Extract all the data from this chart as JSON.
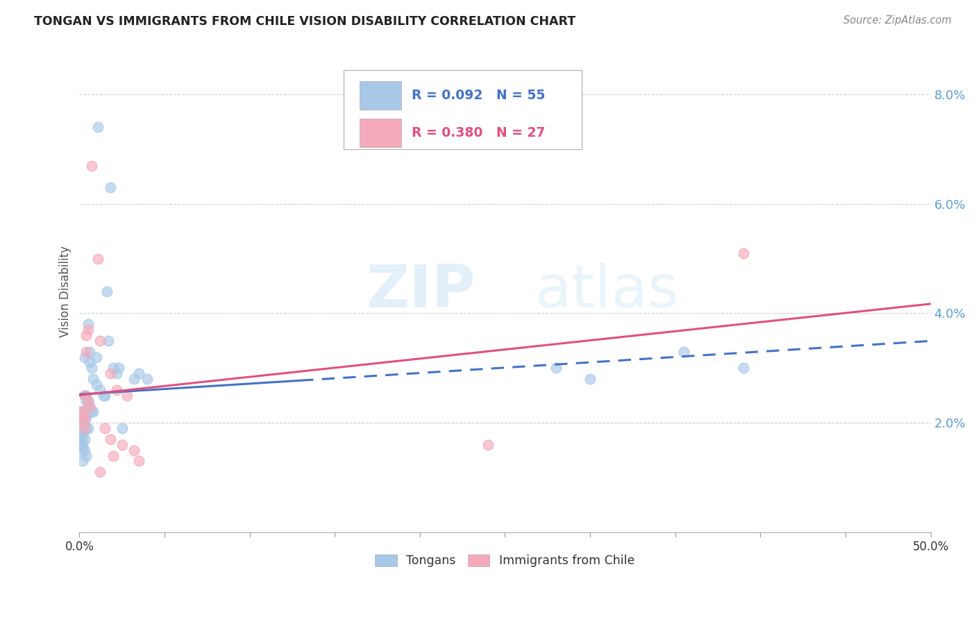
{
  "title": "TONGAN VS IMMIGRANTS FROM CHILE VISION DISABILITY CORRELATION CHART",
  "source": "Source: ZipAtlas.com",
  "ylabel": "Vision Disability",
  "xlim": [
    0.0,
    0.5
  ],
  "ylim": [
    0.0,
    0.088
  ],
  "yticks": [
    0.02,
    0.04,
    0.06,
    0.08
  ],
  "ytick_labels": [
    "2.0%",
    "4.0%",
    "6.0%",
    "8.0%"
  ],
  "xticks": [
    0.0,
    0.05,
    0.1,
    0.15,
    0.2,
    0.25,
    0.3,
    0.35,
    0.4,
    0.45,
    0.5
  ],
  "legend_entries": [
    {
      "label": "Tongans",
      "R": "0.092",
      "N": "55",
      "color": "#a8c8e8"
    },
    {
      "label": "Immigrants from Chile",
      "R": "0.380",
      "N": "27",
      "color": "#f4aabb"
    }
  ],
  "color_blue": "#a8c8e8",
  "color_pink": "#f4aabb",
  "color_blue_line": "#4472c4",
  "color_pink_line": "#e05080",
  "watermark_zip": "ZIP",
  "watermark_atlas": "atlas",
  "tongans_x": [
    0.011,
    0.018,
    0.016,
    0.004,
    0.005,
    0.006,
    0.003,
    0.006,
    0.007,
    0.008,
    0.01,
    0.012,
    0.014,
    0.003,
    0.004,
    0.005,
    0.006,
    0.007,
    0.008,
    0.002,
    0.003,
    0.004,
    0.002,
    0.001,
    0.002,
    0.003,
    0.004,
    0.005,
    0.002,
    0.001,
    0.002,
    0.001,
    0.003,
    0.01,
    0.02,
    0.022,
    0.032,
    0.002,
    0.015,
    0.025,
    0.017,
    0.023,
    0.035,
    0.04,
    0.003,
    0.004,
    0.001,
    0.355,
    0.39,
    0.001,
    0.002,
    0.28,
    0.3,
    0.002,
    0.001
  ],
  "tongans_y": [
    0.074,
    0.063,
    0.044,
    0.025,
    0.038,
    0.033,
    0.032,
    0.031,
    0.03,
    0.028,
    0.027,
    0.026,
    0.025,
    0.025,
    0.024,
    0.024,
    0.023,
    0.022,
    0.022,
    0.022,
    0.021,
    0.021,
    0.021,
    0.02,
    0.02,
    0.02,
    0.019,
    0.019,
    0.018,
    0.018,
    0.018,
    0.017,
    0.017,
    0.032,
    0.03,
    0.029,
    0.028,
    0.016,
    0.025,
    0.019,
    0.035,
    0.03,
    0.029,
    0.028,
    0.015,
    0.014,
    0.016,
    0.033,
    0.03,
    0.022,
    0.015,
    0.03,
    0.028,
    0.013,
    0.016
  ],
  "chile_x": [
    0.005,
    0.004,
    0.007,
    0.011,
    0.012,
    0.004,
    0.003,
    0.005,
    0.006,
    0.002,
    0.002,
    0.003,
    0.003,
    0.018,
    0.022,
    0.025,
    0.028,
    0.032,
    0.001,
    0.002,
    0.24,
    0.035,
    0.39,
    0.015,
    0.018,
    0.02,
    0.012
  ],
  "chile_y": [
    0.037,
    0.036,
    0.067,
    0.05,
    0.035,
    0.033,
    0.025,
    0.024,
    0.023,
    0.022,
    0.021,
    0.021,
    0.019,
    0.029,
    0.026,
    0.016,
    0.025,
    0.015,
    0.022,
    0.02,
    0.016,
    0.013,
    0.051,
    0.019,
    0.017,
    0.014,
    0.011
  ],
  "trend_split_x": 0.13
}
